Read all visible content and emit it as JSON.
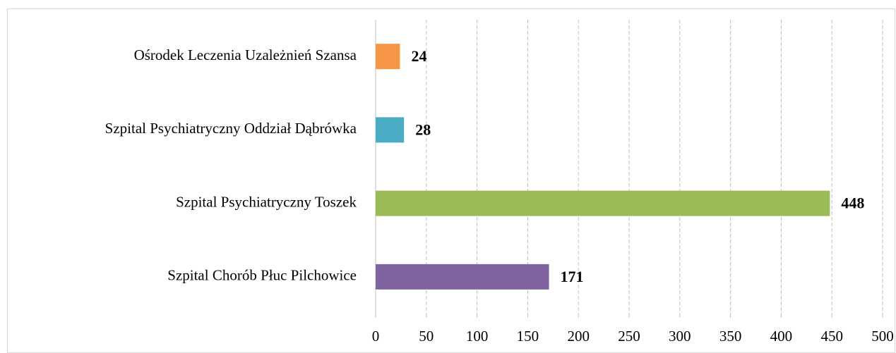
{
  "chart_data": {
    "type": "bar",
    "orientation": "horizontal",
    "categories": [
      "Ośrodek Leczenia Uzależnień Szansa",
      "Szpital Psychiatryczny Oddział Dąbrówka",
      "Szpital Psychiatryczny Toszek",
      "Szpital Chorób Płuc Pilchowice"
    ],
    "values": [
      24,
      28,
      448,
      171
    ],
    "colors": [
      "#f79646",
      "#4bacc6",
      "#9bbb59",
      "#8064a2"
    ],
    "xlim": [
      0,
      500
    ],
    "xticks": [
      0,
      50,
      100,
      150,
      200,
      250,
      300,
      350,
      400,
      450,
      500
    ],
    "grid": true
  }
}
